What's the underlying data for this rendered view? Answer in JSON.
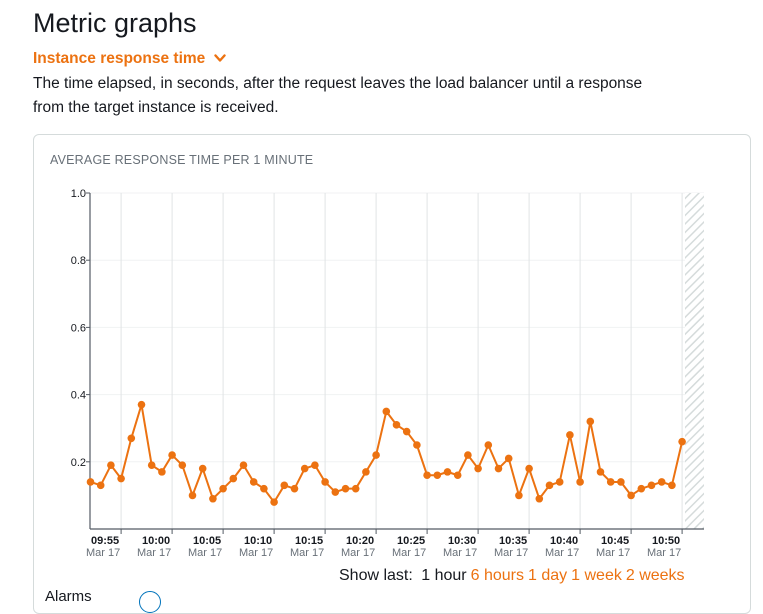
{
  "page": {
    "title": "Metric graphs",
    "dropdown_label": "Instance response time",
    "description": "The time elapsed, in seconds, after the request leaves the load balancer until a response from the target instance is received.",
    "bottom_label": "Alarms",
    "colors": {
      "accent": "#ec7211",
      "text": "#16191f",
      "muted": "#687078",
      "grid": "#e1e4e5",
      "axis": "#545b64"
    },
    "icons": {
      "dropdown": "chevron-down-icon",
      "info": "info-icon"
    }
  },
  "chart_data": {
    "type": "line",
    "title": "AVERAGE RESPONSE TIME PER 1 MINUTE",
    "ylim": [
      0,
      1.0
    ],
    "yticks": [
      "1.0",
      "0.8",
      "0.6",
      "0.4",
      "0.2"
    ],
    "ytick_values": [
      1.0,
      0.8,
      0.6,
      0.4,
      0.2
    ],
    "grid": true,
    "x_ticks": [
      {
        "time": "09:55",
        "date": "Mar 17"
      },
      {
        "time": "10:00",
        "date": "Mar 17"
      },
      {
        "time": "10:05",
        "date": "Mar 17"
      },
      {
        "time": "10:10",
        "date": "Mar 17"
      },
      {
        "time": "10:15",
        "date": "Mar 17"
      },
      {
        "time": "10:20",
        "date": "Mar 17"
      },
      {
        "time": "10:25",
        "date": "Mar 17"
      },
      {
        "time": "10:30",
        "date": "Mar 17"
      },
      {
        "time": "10:35",
        "date": "Mar 17"
      },
      {
        "time": "10:40",
        "date": "Mar 17"
      },
      {
        "time": "10:45",
        "date": "Mar 17"
      },
      {
        "time": "10:50",
        "date": "Mar 17"
      }
    ],
    "x_start": "09:55",
    "series": [
      {
        "color": "#ec7211",
        "values": [
          0.14,
          0.13,
          0.19,
          0.15,
          0.27,
          0.37,
          0.19,
          0.17,
          0.22,
          0.19,
          0.1,
          0.18,
          0.09,
          0.12,
          0.15,
          0.19,
          0.14,
          0.12,
          0.08,
          0.13,
          0.12,
          0.18,
          0.19,
          0.14,
          0.11,
          0.12,
          0.12,
          0.17,
          0.22,
          0.35,
          0.31,
          0.29,
          0.25,
          0.16,
          0.16,
          0.17,
          0.16,
          0.22,
          0.18,
          0.25,
          0.18,
          0.21,
          0.1,
          0.18,
          0.09,
          0.13,
          0.14,
          0.28,
          0.14,
          0.32,
          0.17,
          0.14,
          0.14,
          0.1,
          0.12,
          0.13,
          0.14,
          0.13,
          0.26
        ]
      }
    ],
    "partial_region": true
  },
  "show_last": {
    "label": "Show last:",
    "options": [
      {
        "label": "1 hour",
        "active": true
      },
      {
        "label": "6 hours",
        "active": false
      },
      {
        "label": "1 day",
        "active": false
      },
      {
        "label": "1 week",
        "active": false
      },
      {
        "label": "2 weeks",
        "active": false
      }
    ]
  }
}
